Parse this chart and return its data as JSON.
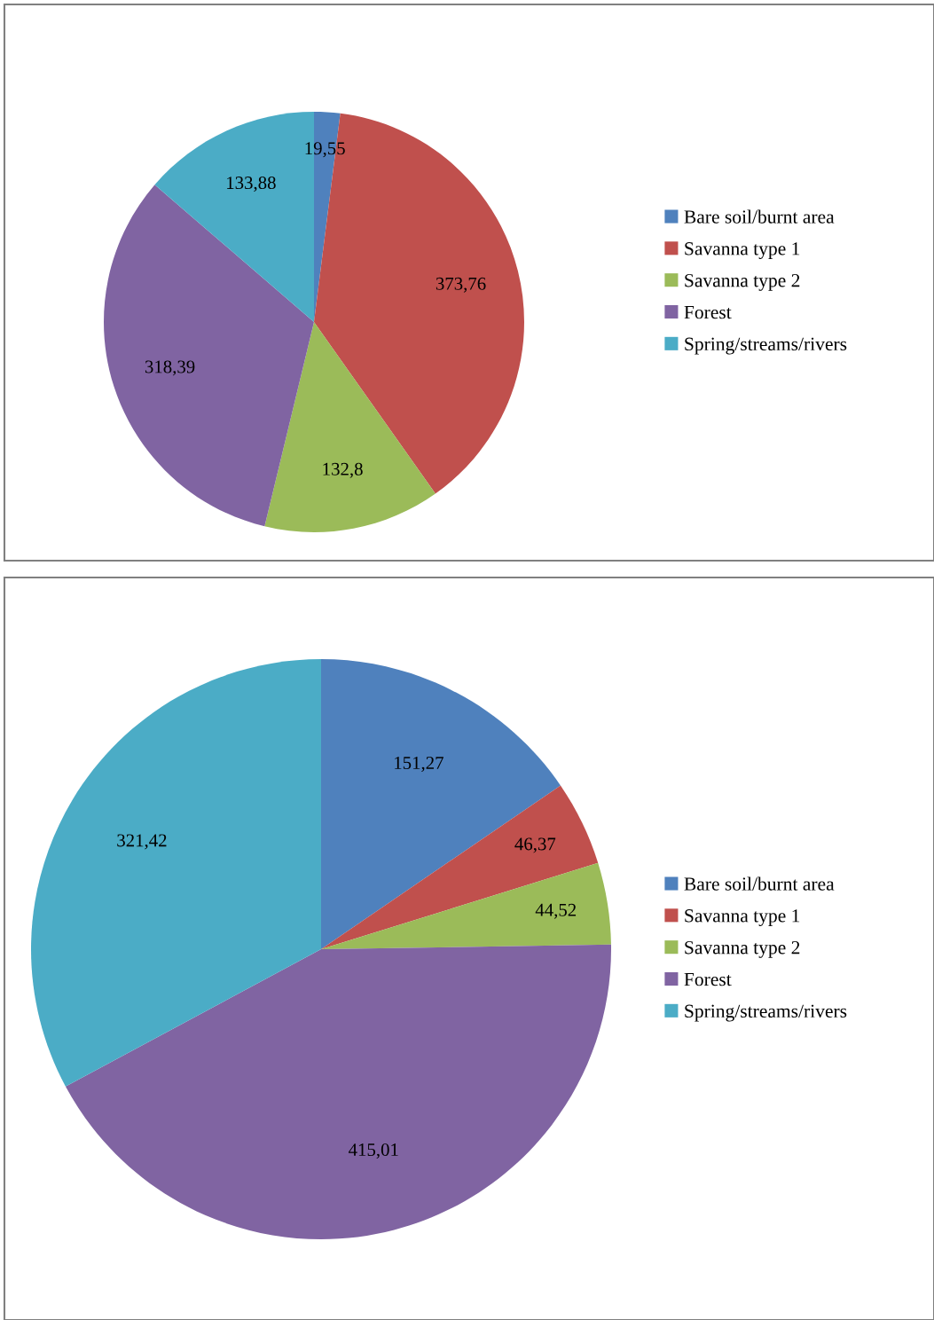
{
  "chart_data": [
    {
      "type": "pie",
      "categories": [
        "Bare soil/burnt area",
        "Savanna type 1",
        "Savanna type 2",
        "Forest",
        "Spring/streams/rivers"
      ],
      "values": [
        19.55,
        373.76,
        132.8,
        318.39,
        133.88
      ],
      "colors": [
        "#4f81bd",
        "#c0504d",
        "#9bbb59",
        "#8064a2",
        "#4bacc6"
      ],
      "value_labels": [
        "19,55",
        "373,76",
        "132,8",
        "318,39",
        "133,88"
      ],
      "legend": "right"
    },
    {
      "type": "pie",
      "categories": [
        "Bare soil/burnt area",
        "Savanna type 1",
        "Savanna type 2",
        "Forest",
        "Spring/streams/rivers"
      ],
      "values": [
        151.27,
        46.37,
        44.52,
        415.01,
        321.42
      ],
      "colors": [
        "#4f81bd",
        "#c0504d",
        "#9bbb59",
        "#8064a2",
        "#4bacc6"
      ],
      "value_labels": [
        "151,27",
        "46,37",
        "44,52",
        "415,01",
        "321,42"
      ],
      "legend": "right"
    }
  ]
}
